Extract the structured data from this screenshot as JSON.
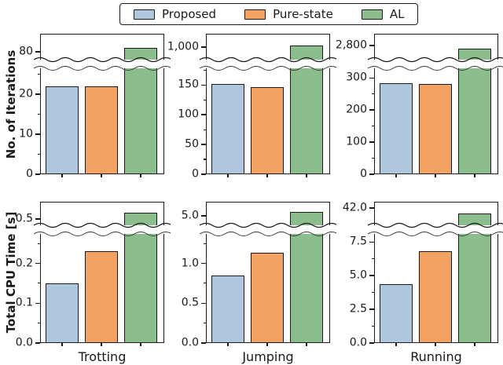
{
  "legend": {
    "items": [
      {
        "label": "Proposed",
        "color": "#aec6de"
      },
      {
        "label": "Pure-state",
        "color": "#f3a361"
      },
      {
        "label": "AL",
        "color": "#8cbd8d"
      }
    ]
  },
  "chart_data": {
    "type": "bar",
    "broken_axis": true,
    "legend_position": "top-center",
    "methods": [
      "Proposed",
      "Pure-state",
      "AL"
    ],
    "method_colors": [
      "#aec6de",
      "#f3a361",
      "#8cbd8d"
    ],
    "edge_color": "#1a1a1a",
    "rows": [
      {
        "ylabel": "No. of Iterations"
      },
      {
        "ylabel": "Total CPU Time [s]"
      }
    ],
    "columns": [
      {
        "xlabel": "Trotting"
      },
      {
        "xlabel": "Jumping"
      },
      {
        "xlabel": "Running"
      }
    ],
    "subplots": [
      {
        "id": "iterations-trotting",
        "values": [
          22,
          22,
          82
        ],
        "lower_axis": {
          "range": [
            0,
            26.5
          ],
          "ticks": [
            {
              "label": "0",
              "value": 0
            },
            {
              "label": "10",
              "value": 10
            },
            {
              "label": "20",
              "value": 20
            }
          ]
        },
        "upper_axis": {
          "tick_label": "80",
          "tick_value": 80,
          "range": [
            76,
            89
          ]
        }
      },
      {
        "id": "iterations-jumping",
        "values": [
          152,
          146,
          1010
        ],
        "lower_axis": {
          "range": [
            0,
            178
          ],
          "ticks": [
            {
              "label": "0",
              "value": 0
            },
            {
              "label": "50",
              "value": 50
            },
            {
              "label": "100",
              "value": 100
            },
            {
              "label": "150",
              "value": 150
            }
          ]
        },
        "upper_axis": {
          "tick_label": "1,000",
          "tick_value": 1000,
          "range": [
            930,
            1075
          ]
        }
      },
      {
        "id": "iterations-running",
        "values": [
          283,
          282,
          2780
        ],
        "lower_axis": {
          "range": [
            0,
            330
          ],
          "ticks": [
            {
              "label": "0",
              "value": 0
            },
            {
              "label": "100",
              "value": 100
            },
            {
              "label": "200",
              "value": 200
            },
            {
              "label": "300",
              "value": 300
            }
          ]
        },
        "upper_axis": {
          "tick_label": "2,800",
          "tick_value": 2800,
          "range": [
            2715,
            2870
          ]
        }
      },
      {
        "id": "cpu-time-trotting",
        "values": [
          0.15,
          0.23,
          0.52
        ],
        "lower_axis": {
          "range": [
            0,
            0.274
          ],
          "ticks": [
            {
              "label": "0.0",
              "value": 0
            },
            {
              "label": "0.1",
              "value": 0.1
            },
            {
              "label": "0.2",
              "value": 0.2
            }
          ]
        },
        "upper_axis": {
          "tick_label": "0.5",
          "tick_value": 0.5,
          "range": [
            0.482,
            0.551
          ]
        }
      },
      {
        "id": "cpu-time-jumping",
        "values": [
          0.85,
          1.13,
          5.2
        ],
        "lower_axis": {
          "range": [
            0,
            1.37
          ],
          "ticks": [
            {
              "label": "0.0",
              "value": 0
            },
            {
              "label": "0.5",
              "value": 0.5
            },
            {
              "label": "1.0",
              "value": 1.0
            }
          ]
        },
        "upper_axis": {
          "tick_label": "5.0",
          "tick_value": 5.0,
          "range": [
            4.53,
            5.71
          ]
        }
      },
      {
        "id": "cpu-time-running",
        "values": [
          4.4,
          6.8,
          41.5
        ],
        "lower_axis": {
          "range": [
            0,
            8.1
          ],
          "ticks": [
            {
              "label": "0.0",
              "value": 0
            },
            {
              "label": "2.5",
              "value": 2.5
            },
            {
              "label": "5.0",
              "value": 5.0
            },
            {
              "label": "7.5",
              "value": 7.5
            }
          ]
        },
        "upper_axis": {
          "tick_label": "42.0",
          "tick_value": 42.0,
          "range": [
            40.4,
            42.6
          ]
        }
      }
    ]
  }
}
